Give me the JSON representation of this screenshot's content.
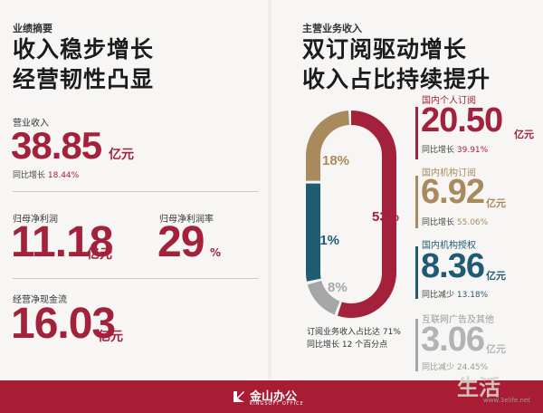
{
  "left": {
    "tag": "业绩摘要",
    "headline_1": "收入稳步增长",
    "headline_2": "经营韧性凸显",
    "revenue_label": "营业收入",
    "revenue_value": "38.85",
    "revenue_unit": "亿元",
    "revenue_yoy_text": "同比增长",
    "revenue_yoy": "18.44%",
    "np_label": "归母净利润",
    "np_value": "11.18",
    "np_unit": "亿元",
    "npm_label": "归母净利润率",
    "npm_value": "29",
    "npm_unit": "%",
    "cf_label": "经营净现金流",
    "cf_value": "16.03",
    "cf_unit": "亿元"
  },
  "right": {
    "tag": "主营业务收入",
    "headline_1": "双订阅驱动增长",
    "headline_2": "收入占比持续提升",
    "note_1": "订阅业务收入占比达 71%",
    "note_2": "同比增长 12 个百分点",
    "items": [
      {
        "label": "国内个人订阅",
        "value": "20.50",
        "unit": "亿元",
        "change_text": "同比增长",
        "change": "39.91%",
        "color": "#a3213a"
      },
      {
        "label": "国内机构订阅",
        "value": "6.92",
        "unit": "亿元",
        "change_text": "同比增长",
        "change": "55.06%",
        "color": "#a88a5c"
      },
      {
        "label": "国内机构授权",
        "value": "8.36",
        "unit": "亿元",
        "change_text": "同比减少",
        "change": "13.18%",
        "color": "#1f5b73"
      },
      {
        "label": "互联网广告及其他",
        "value": "3.06",
        "unit": "亿元",
        "change_text": "同比减少",
        "change": "24.45%",
        "color": "#a6a6a6"
      }
    ]
  },
  "chart_data": {
    "type": "pie",
    "categories": [
      "国内个人订阅",
      "国内机构订阅",
      "国内机构授权",
      "互联网广告及其他"
    ],
    "values": [
      53,
      18,
      21,
      8
    ],
    "labels": [
      "53%",
      "18%",
      "21%",
      "8%"
    ],
    "colors": [
      "#a3213a",
      "#a88a5c",
      "#1f5b73",
      "#a6a6a6"
    ]
  },
  "footer": {
    "logo": "金山办公",
    "logo_sub": "KINGSOFT OFFICE"
  },
  "watermark": {
    "text": "生活",
    "url": "www.3elife.net"
  }
}
